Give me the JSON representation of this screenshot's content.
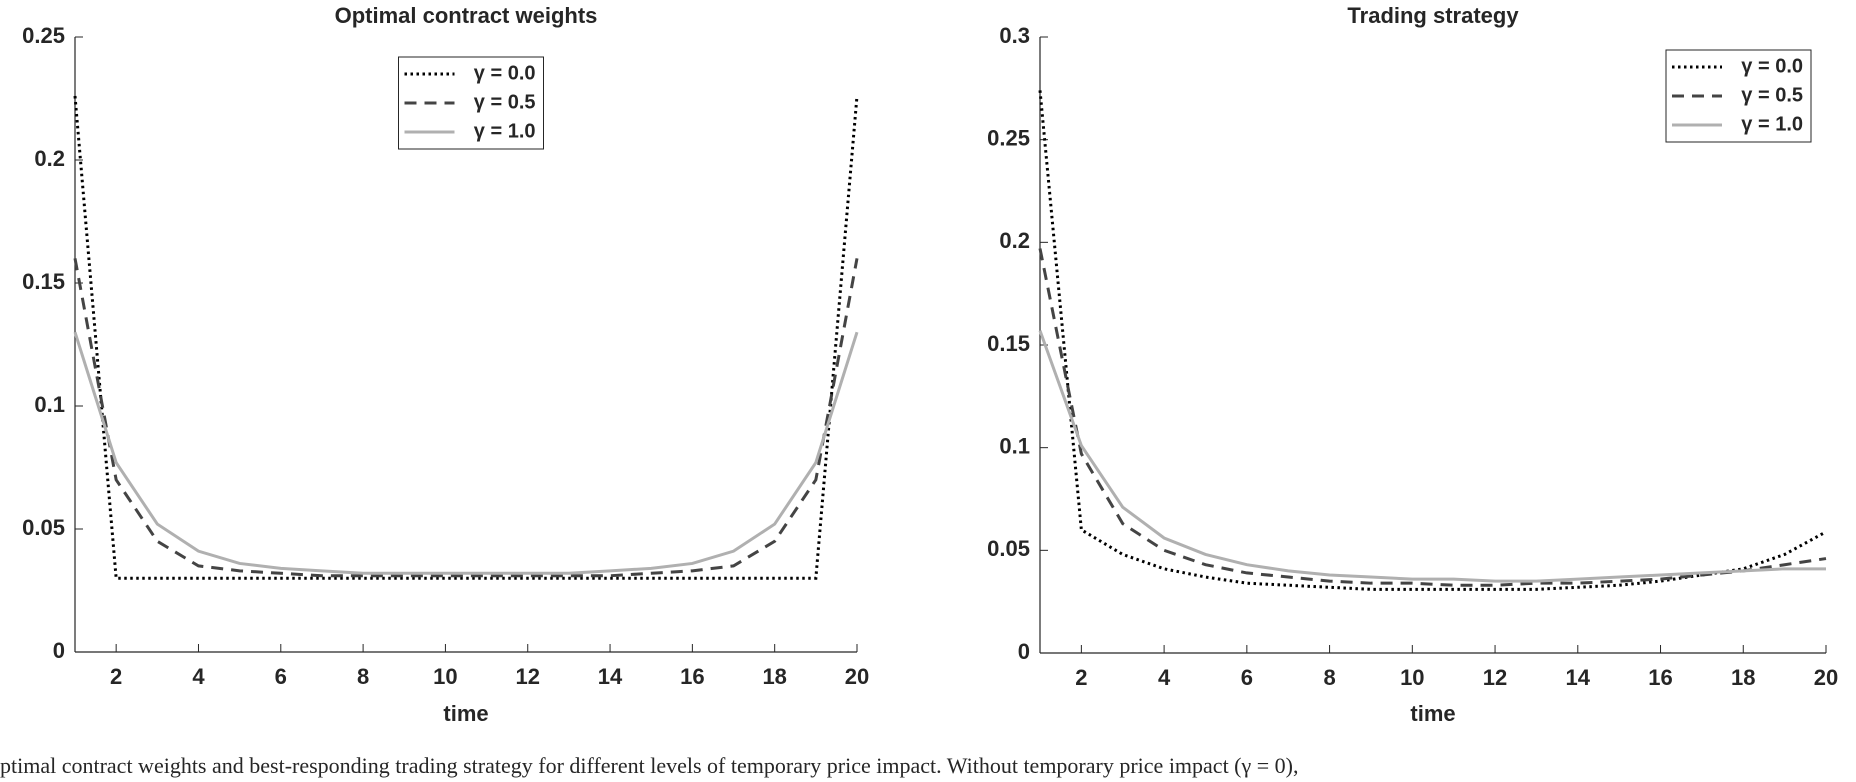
{
  "chart_data": [
    {
      "type": "line",
      "title": "Optimal contract weights",
      "x_label": "time",
      "x": [
        1,
        2,
        3,
        4,
        5,
        6,
        7,
        8,
        9,
        10,
        11,
        12,
        13,
        14,
        15,
        16,
        17,
        18,
        19,
        20
      ],
      "xlim": [
        1,
        20
      ],
      "xticks": [
        2,
        4,
        6,
        8,
        10,
        12,
        14,
        16,
        18,
        20
      ],
      "ylim": [
        0,
        0.25
      ],
      "yticks": [
        0,
        0.05,
        0.1,
        0.15,
        0.2,
        0.25
      ],
      "legend": "top-center",
      "series": [
        {
          "name": "γ = 0.0",
          "color": "#000000",
          "linestyle": "dotted",
          "values": [
            0.226,
            0.03,
            0.03,
            0.03,
            0.03,
            0.03,
            0.03,
            0.03,
            0.03,
            0.03,
            0.03,
            0.03,
            0.03,
            0.03,
            0.03,
            0.03,
            0.03,
            0.03,
            0.03,
            0.226
          ]
        },
        {
          "name": "γ = 0.5",
          "color": "#444444",
          "linestyle": "dashed",
          "values": [
            0.16,
            0.07,
            0.045,
            0.035,
            0.033,
            0.032,
            0.031,
            0.031,
            0.031,
            0.031,
            0.031,
            0.031,
            0.031,
            0.031,
            0.032,
            0.033,
            0.035,
            0.045,
            0.07,
            0.16
          ]
        },
        {
          "name": "γ = 1.0",
          "color": "#b0b0b0",
          "linestyle": "solid",
          "values": [
            0.13,
            0.077,
            0.052,
            0.041,
            0.036,
            0.034,
            0.033,
            0.032,
            0.032,
            0.032,
            0.032,
            0.032,
            0.032,
            0.033,
            0.034,
            0.036,
            0.041,
            0.052,
            0.077,
            0.13
          ]
        }
      ]
    },
    {
      "type": "line",
      "title": "Trading strategy",
      "x_label": "time",
      "x": [
        1,
        2,
        3,
        4,
        5,
        6,
        7,
        8,
        9,
        10,
        11,
        12,
        13,
        14,
        15,
        16,
        17,
        18,
        19,
        20
      ],
      "xlim": [
        1,
        20
      ],
      "xticks": [
        2,
        4,
        6,
        8,
        10,
        12,
        14,
        16,
        18,
        20
      ],
      "ylim": [
        0,
        0.3
      ],
      "yticks": [
        0,
        0.05,
        0.1,
        0.15,
        0.2,
        0.25,
        0.3
      ],
      "legend": "top-right",
      "series": [
        {
          "name": "γ = 0.0",
          "color": "#000000",
          "linestyle": "dotted",
          "values": [
            0.274,
            0.06,
            0.048,
            0.041,
            0.037,
            0.034,
            0.033,
            0.032,
            0.031,
            0.031,
            0.031,
            0.031,
            0.031,
            0.032,
            0.033,
            0.035,
            0.038,
            0.041,
            0.048,
            0.059
          ]
        },
        {
          "name": "γ = 0.5",
          "color": "#444444",
          "linestyle": "dashed",
          "values": [
            0.197,
            0.097,
            0.063,
            0.05,
            0.043,
            0.039,
            0.037,
            0.035,
            0.034,
            0.034,
            0.033,
            0.033,
            0.034,
            0.034,
            0.035,
            0.036,
            0.038,
            0.04,
            0.043,
            0.046
          ]
        },
        {
          "name": "γ = 1.0",
          "color": "#b0b0b0",
          "linestyle": "solid",
          "values": [
            0.157,
            0.101,
            0.071,
            0.056,
            0.048,
            0.043,
            0.04,
            0.038,
            0.037,
            0.036,
            0.036,
            0.035,
            0.035,
            0.036,
            0.037,
            0.038,
            0.039,
            0.04,
            0.041,
            0.041
          ]
        }
      ]
    }
  ],
  "caption": "ptimal contract weights and best-responding trading strategy for different levels of temporary price impact. Without temporary price impact (γ = 0),"
}
